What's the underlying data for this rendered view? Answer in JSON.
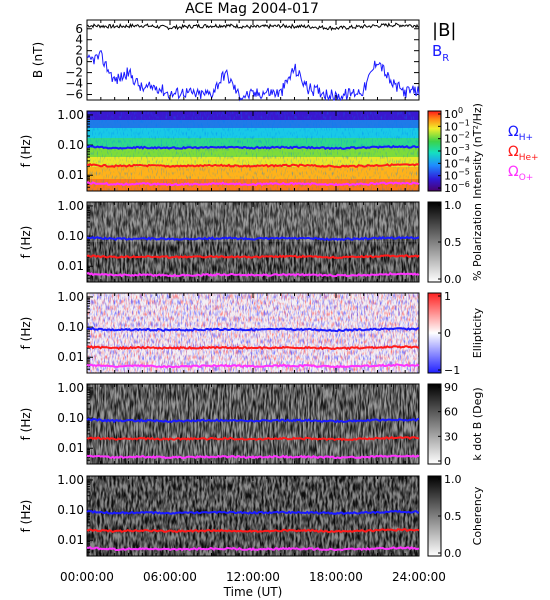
{
  "figure": {
    "title": "ACE Mag 2004-017",
    "xlabel": "Time (UT)",
    "x_ticks": [
      "00:00:00",
      "06:00:00",
      "12:00:00",
      "18:00:00",
      "24:00:00"
    ],
    "x_minor_ticks_per_major": 6
  },
  "colors": {
    "B_magnitude": "#000000",
    "B_R": "#1a1aff",
    "proton_gyro": "#1a1aff",
    "helium_gyro": "#ff1a1a",
    "oxygen_gyro": "#ff33ff"
  },
  "chart_data": [
    {
      "type": "line",
      "ylabel": "B (nT)",
      "y_ticks": [
        6,
        4,
        2,
        0,
        -2,
        -4,
        -6
      ],
      "ylim": [
        -7,
        7.6
      ],
      "legend": [
        {
          "label": "|B|",
          "sub": "",
          "color": "#000000"
        },
        {
          "label": "B",
          "sub": "R",
          "color": "#1a1aff"
        }
      ],
      "series": [
        {
          "name": "|B|",
          "x_hours": [
            0,
            2,
            4,
            6,
            8,
            10,
            12,
            14,
            16,
            18,
            20,
            22,
            24
          ],
          "values": [
            6.6,
            6.4,
            6.6,
            6.2,
            6.5,
            6.6,
            6.3,
            6.5,
            6.4,
            6.1,
            6.4,
            6.7,
            6.6
          ]
        },
        {
          "name": "B_R",
          "x_hours": [
            0,
            1,
            2,
            3,
            4,
            5,
            6,
            7,
            8,
            9,
            10,
            11,
            12,
            13,
            14,
            15,
            16,
            17,
            18,
            19,
            20,
            21,
            22,
            23,
            24
          ],
          "values": [
            0,
            1,
            -3.5,
            -2,
            -5,
            -4.5,
            -6,
            -5.5,
            -6,
            -5.8,
            -2,
            -6.2,
            -6,
            -5.5,
            -5.8,
            -1.2,
            -5,
            -5.5,
            -6.5,
            -5.8,
            -5.2,
            0.5,
            -4,
            -5.5,
            -5.4
          ]
        }
      ]
    },
    {
      "type": "heatmap",
      "ylabel": "f (Hz)",
      "y_ticks": [
        "1.00",
        "0.10",
        "0.01"
      ],
      "colorbar": {
        "scale": "rainbow",
        "label": "Intensity (nT²/Hz)",
        "ticks": [
          "10^0",
          "10^-1",
          "10^-2",
          "10^-3",
          "10^-4",
          "10^-5",
          "10^-6"
        ]
      },
      "legend": [
        {
          "label": "Ω",
          "sub": "H+",
          "color": "#1a1aff"
        },
        {
          "label": "Ω",
          "sub": "He+",
          "color": "#ff1a1a"
        },
        {
          "label": "Ω",
          "sub": "O+",
          "color": "#ff33ff"
        }
      ]
    },
    {
      "type": "heatmap",
      "ylabel": "f (Hz)",
      "y_ticks": [
        "1.00",
        "0.10",
        "0.01"
      ],
      "colorbar": {
        "scale": "grey",
        "label": "% Polarization",
        "ticks": [
          "1.0",
          "0.5",
          "0.0"
        ]
      }
    },
    {
      "type": "heatmap",
      "ylabel": "f (Hz)",
      "y_ticks": [
        "1.00",
        "0.10",
        "0.01"
      ],
      "colorbar": {
        "scale": "bwr",
        "label": "Ellipticity",
        "ticks": [
          "1",
          "0",
          "−1"
        ]
      }
    },
    {
      "type": "heatmap",
      "ylabel": "f (Hz)",
      "y_ticks": [
        "1.00",
        "0.10",
        "0.01"
      ],
      "colorbar": {
        "scale": "grey",
        "label": "k dot B (Deg)",
        "ticks": [
          "90",
          "60",
          "30",
          "0"
        ]
      }
    },
    {
      "type": "heatmap",
      "ylabel": "f (Hz)",
      "y_ticks": [
        "1.00",
        "0.10",
        "0.01"
      ],
      "colorbar": {
        "scale": "grey",
        "label": "Coherency",
        "ticks": [
          "1.0",
          "0.5",
          "0.0"
        ]
      }
    }
  ],
  "gyrofrequency_lines": {
    "x_hours": [
      0,
      2,
      4,
      6,
      8,
      10,
      12,
      14,
      16,
      18,
      20,
      22,
      24
    ],
    "proton_hz": [
      0.09,
      0.08,
      0.083,
      0.079,
      0.082,
      0.085,
      0.081,
      0.084,
      0.083,
      0.078,
      0.082,
      0.088,
      0.087
    ],
    "helium_hz": [
      0.022,
      0.02,
      0.021,
      0.02,
      0.0205,
      0.021,
      0.02,
      0.021,
      0.0208,
      0.0195,
      0.0205,
      0.022,
      0.0218
    ],
    "oxygen_hz": [
      0.0056,
      0.005,
      0.0052,
      0.0049,
      0.0051,
      0.0053,
      0.005,
      0.0052,
      0.0052,
      0.0049,
      0.0051,
      0.0055,
      0.0054
    ]
  }
}
